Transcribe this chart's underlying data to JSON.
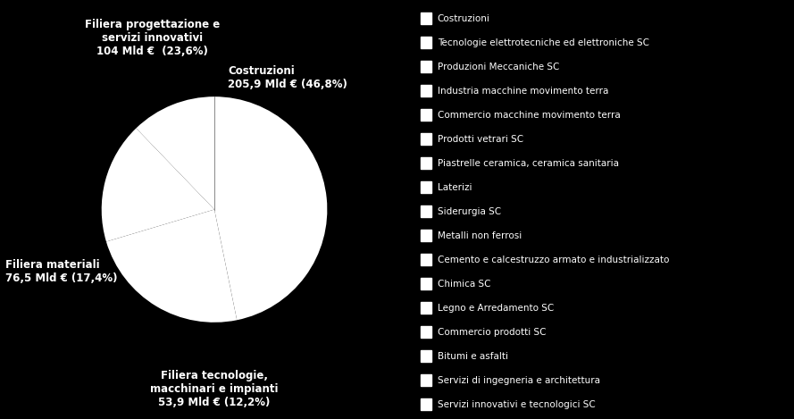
{
  "slice_values": [
    46.8,
    23.6,
    17.4,
    12.2
  ],
  "slice_labels": [
    "Costruzioni\n205,9 Mld € (46,8%)",
    "Filiera progettazione e\nservizi innovativi\n104 Mld €  (23,6%)",
    "Filiera materiali\n76,5 Mld € (17,4%)",
    "Filiera tecnologie,\nmacchinari e impianti\n53,9 Mld € (12,2%)"
  ],
  "legend_items": [
    "Costruzioni",
    "Tecnologie elettrotecniche ed elettroniche SC",
    "Produzioni Meccaniche SC",
    "Industria macchine movimento terra",
    "Commercio macchine movimento terra",
    "Prodotti vetrari SC",
    "Piastrelle ceramica, ceramica sanitaria",
    "Laterizi",
    "Siderurgia SC",
    "Metalli non ferrosi",
    "Cemento e calcestruzzo armato e industrializzato",
    "Chimica SC",
    "Legno e Arredamento SC",
    "Commercio prodotti SC",
    "Bitumi e asfalti",
    "Servizi di ingegneria e architettura",
    "Servizi innovativi e tecnologici SC"
  ],
  "background_color": "#000000",
  "text_color": "#ffffff",
  "pie_color": "#ffffff",
  "line_color": "#888888",
  "label_fontsize": 8.5,
  "legend_fontsize": 7.5
}
